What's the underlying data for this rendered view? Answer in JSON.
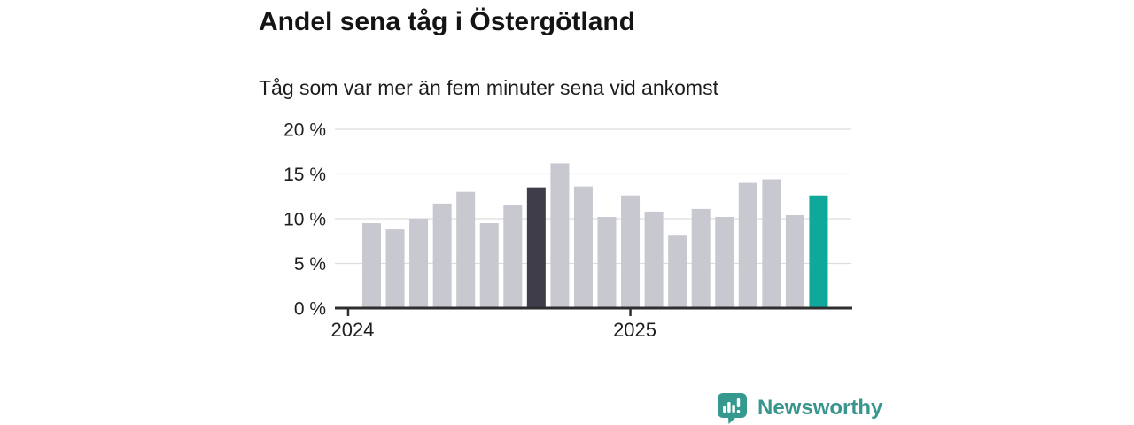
{
  "header": {
    "title": "Andel sena tåg i Östergötland",
    "subtitle": "Tåg som var mer än fem minuter sena vid ankomst"
  },
  "footer": {
    "brand": "Newsworthy"
  },
  "chart_data": {
    "type": "bar",
    "title": "Andel sena tåg i Östergötland",
    "subtitle": "Tåg som var mer än fem minuter sena vid ankomst",
    "unit": "%",
    "x": [
      "2024-02",
      "2024-03",
      "2024-04",
      "2024-05",
      "2024-06",
      "2024-07",
      "2024-08",
      "2024-09",
      "2024-10",
      "2024-11",
      "2024-12",
      "2025-01",
      "2025-02",
      "2025-03",
      "2025-04",
      "2025-05",
      "2025-06",
      "2025-07",
      "2025-08",
      "2025-09"
    ],
    "values": [
      9.5,
      8.8,
      10.0,
      11.7,
      13.0,
      9.5,
      11.5,
      13.5,
      16.2,
      13.6,
      10.2,
      12.6,
      10.8,
      8.2,
      11.1,
      10.2,
      14.0,
      14.4,
      10.4,
      12.6
    ],
    "highlighted_index": 19,
    "comparison_index": 7,
    "ylim": [
      0,
      20
    ],
    "y_tick_values": [
      0,
      5,
      10,
      15,
      20
    ],
    "y_tick_labels": [
      "0 %",
      "5 %",
      "10 %",
      "15 %",
      "20 %"
    ],
    "x_ticks": [
      {
        "label": "2024",
        "month_index": -1
      },
      {
        "label": "2025",
        "month_index": 11
      }
    ],
    "grid": true,
    "legend": "none",
    "colors": {
      "bar": "#c8c8d0",
      "comparison_bar": "#3f3d4a",
      "highlight_bar": "#0fa99c",
      "axis": "#2e2e2e",
      "gridline": "#dddddd",
      "tick_text": "#1f1f1f",
      "brand": "#39968e"
    }
  }
}
